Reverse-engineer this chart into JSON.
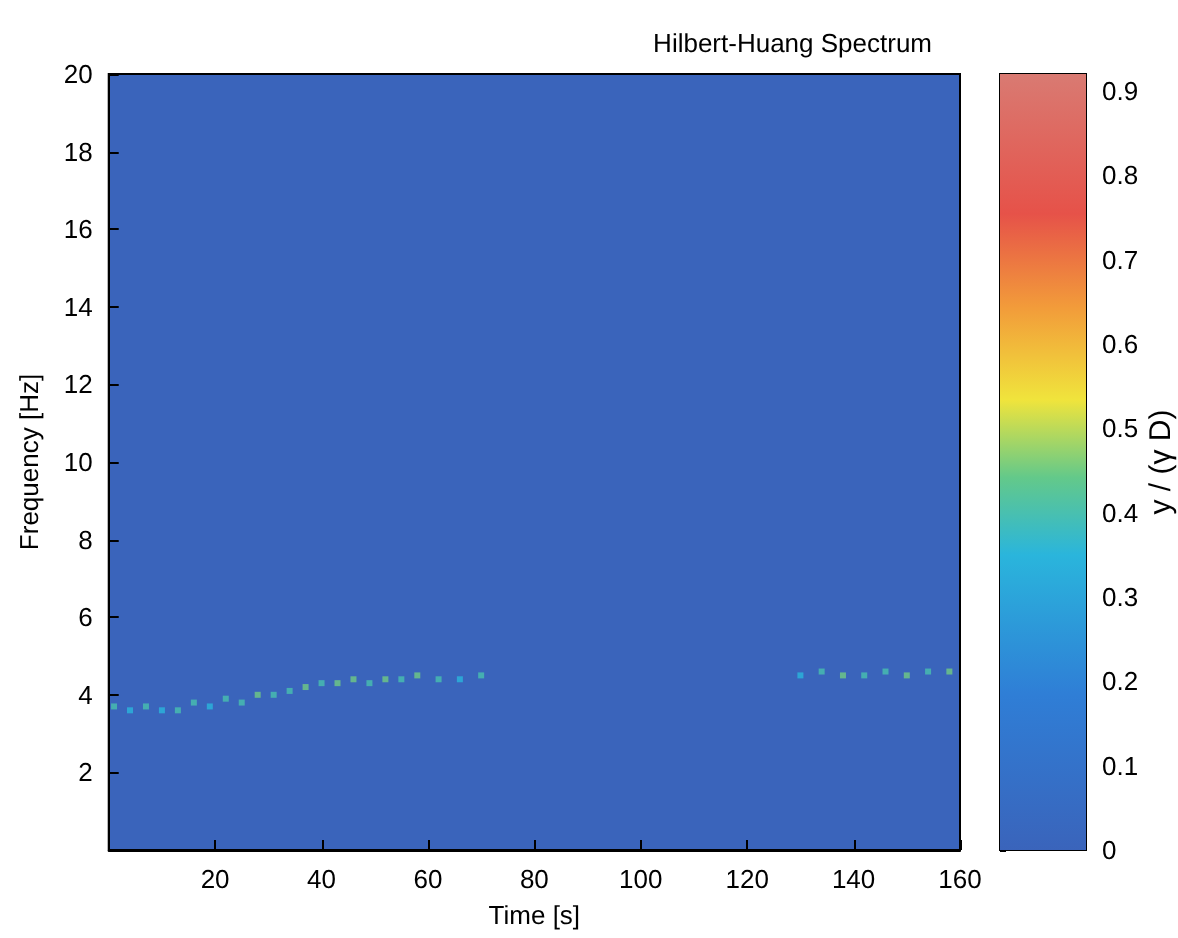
{
  "chart_data": {
    "type": "scatter",
    "title": "Hilbert-Huang Spectrum",
    "xlabel": "Time [s]",
    "ylabel": "Frequency [Hz]",
    "clabel": "y / (γ D)",
    "x": [
      1,
      4,
      7,
      10,
      13,
      16,
      19,
      22,
      25,
      28,
      31,
      34,
      37,
      40,
      43,
      46,
      49,
      52,
      55,
      58,
      62,
      66,
      70,
      130,
      134,
      138,
      142,
      146,
      150,
      154,
      158
    ],
    "values": [
      3.7,
      3.6,
      3.7,
      3.6,
      3.6,
      3.8,
      3.7,
      3.9,
      3.8,
      4.0,
      4.0,
      4.1,
      4.2,
      4.3,
      4.3,
      4.4,
      4.3,
      4.4,
      4.4,
      4.5,
      4.4,
      4.4,
      4.5,
      4.5,
      4.6,
      4.5,
      4.5,
      4.6,
      4.5,
      4.6,
      4.6
    ],
    "cvalues": [
      0.4,
      0.35,
      0.4,
      0.35,
      0.4,
      0.4,
      0.35,
      0.4,
      0.4,
      0.45,
      0.4,
      0.4,
      0.45,
      0.4,
      0.45,
      0.45,
      0.4,
      0.45,
      0.4,
      0.45,
      0.4,
      0.35,
      0.4,
      0.35,
      0.4,
      0.45,
      0.4,
      0.4,
      0.45,
      0.4,
      0.45
    ],
    "xlim": [
      0,
      160
    ],
    "xticks": [
      20,
      40,
      60,
      80,
      100,
      120,
      140,
      160
    ],
    "ylim": [
      0,
      20
    ],
    "yticks": [
      2,
      4,
      6,
      8,
      10,
      12,
      14,
      16,
      18,
      20
    ],
    "clim": [
      0,
      0.92
    ],
    "cticks": [
      0,
      0.1,
      0.2,
      0.3,
      0.4,
      0.5,
      0.6,
      0.7,
      0.8,
      0.9
    ]
  }
}
